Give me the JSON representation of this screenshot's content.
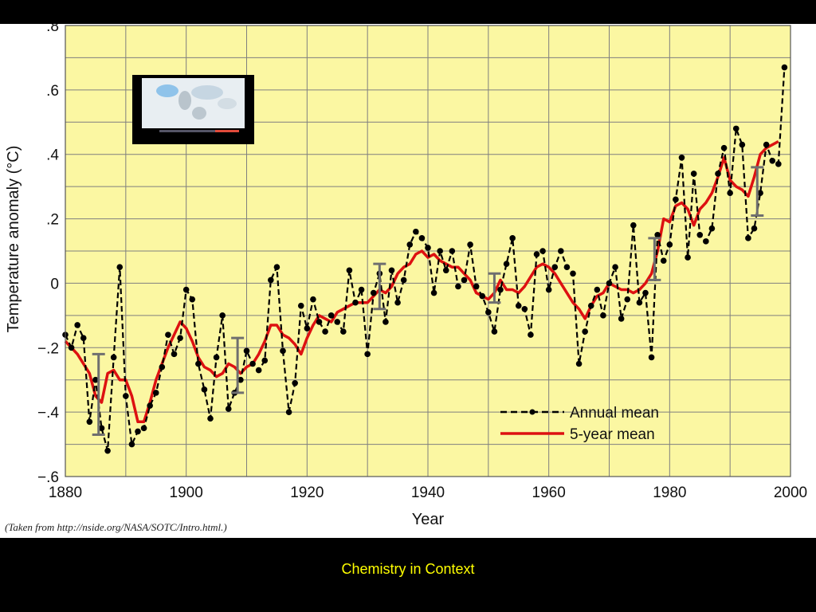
{
  "slide": {
    "footer_text": "Chemistry in Context",
    "source_note": "(Taken from http://nside.org/NASA/SOTC/Intro.html.)"
  },
  "chart_data": {
    "type": "line",
    "xlabel": "Year",
    "ylabel": "Temperature anomaly (°C)",
    "xlim": [
      1880,
      2000
    ],
    "ylim": [
      -0.6,
      0.8
    ],
    "x_ticks": [
      1880,
      1900,
      1920,
      1940,
      1960,
      1980,
      2000
    ],
    "x_tick_labels": [
      "1880",
      "1900",
      "1920",
      "1940",
      "1960",
      "1980",
      "2000"
    ],
    "y_ticks": [
      -0.6,
      -0.4,
      -0.2,
      0,
      0.2,
      0.4,
      0.6,
      0.8
    ],
    "y_tick_labels": [
      "−.6",
      "−.4",
      "−.2",
      "0",
      ".2",
      ".4",
      ".6",
      ".8"
    ],
    "grid": true,
    "background_color": "#fbf7a2",
    "legend_position": "bottom-right",
    "series": [
      {
        "name": "Annual mean",
        "style": "dashed-with-dots",
        "color": "#000000",
        "x": [
          1880,
          1881,
          1882,
          1883,
          1884,
          1885,
          1886,
          1887,
          1888,
          1889,
          1890,
          1891,
          1892,
          1893,
          1894,
          1895,
          1896,
          1897,
          1898,
          1899,
          1900,
          1901,
          1902,
          1903,
          1904,
          1905,
          1906,
          1907,
          1908,
          1909,
          1910,
          1911,
          1912,
          1913,
          1914,
          1915,
          1916,
          1917,
          1918,
          1919,
          1920,
          1921,
          1922,
          1923,
          1924,
          1925,
          1926,
          1927,
          1928,
          1929,
          1930,
          1931,
          1932,
          1933,
          1934,
          1935,
          1936,
          1937,
          1938,
          1939,
          1940,
          1941,
          1942,
          1943,
          1944,
          1945,
          1946,
          1947,
          1948,
          1949,
          1950,
          1951,
          1952,
          1953,
          1954,
          1955,
          1956,
          1957,
          1958,
          1959,
          1960,
          1961,
          1962,
          1963,
          1964,
          1965,
          1966,
          1967,
          1968,
          1969,
          1970,
          1971,
          1972,
          1973,
          1974,
          1975,
          1976,
          1977,
          1978,
          1979,
          1980,
          1981,
          1982,
          1983,
          1984,
          1985,
          1986,
          1987,
          1988,
          1989,
          1990,
          1991,
          1992,
          1993,
          1994,
          1995,
          1996,
          1997,
          1998,
          1999
        ],
        "y": [
          -0.16,
          -0.2,
          -0.13,
          -0.17,
          -0.43,
          -0.3,
          -0.45,
          -0.52,
          -0.23,
          0.05,
          -0.35,
          -0.5,
          -0.46,
          -0.45,
          -0.38,
          -0.34,
          -0.26,
          -0.16,
          -0.22,
          -0.17,
          -0.02,
          -0.05,
          -0.25,
          -0.33,
          -0.42,
          -0.23,
          -0.1,
          -0.39,
          -0.34,
          -0.3,
          -0.21,
          -0.25,
          -0.27,
          -0.24,
          0.01,
          0.05,
          -0.21,
          -0.4,
          -0.31,
          -0.07,
          -0.14,
          -0.05,
          -0.12,
          -0.15,
          -0.1,
          -0.12,
          -0.15,
          0.04,
          -0.06,
          -0.02,
          -0.22,
          -0.03,
          0.03,
          -0.12,
          0.04,
          -0.06,
          0.01,
          0.12,
          0.16,
          0.14,
          0.11,
          -0.03,
          0.1,
          0.04,
          0.1,
          -0.01,
          0.01,
          0.12,
          -0.01,
          -0.04,
          -0.09,
          -0.15,
          -0.02,
          0.06,
          0.14,
          -0.07,
          -0.08,
          -0.16,
          0.09,
          0.1,
          -0.02,
          0.05,
          0.1,
          0.05,
          0.03,
          -0.25,
          -0.15,
          -0.07,
          -0.02,
          -0.1,
          0.0,
          0.05,
          -0.11,
          -0.05,
          0.18,
          -0.06,
          -0.03,
          -0.23,
          0.15,
          0.07,
          0.12,
          0.26,
          0.39,
          0.08,
          0.34,
          0.15,
          0.13,
          0.17,
          0.34,
          0.42,
          0.28,
          0.48,
          0.43,
          0.14,
          0.17,
          0.28,
          0.43,
          0.38,
          0.37,
          0.67
        ]
      },
      {
        "name": "5-year mean",
        "style": "solid",
        "color": "#dd1111",
        "x": [
          1880,
          1882,
          1884,
          1885,
          1886,
          1887,
          1888,
          1889,
          1890,
          1891,
          1892,
          1893,
          1894,
          1895,
          1896,
          1897,
          1898,
          1899,
          1900,
          1901,
          1902,
          1903,
          1904,
          1905,
          1906,
          1907,
          1908,
          1909,
          1910,
          1911,
          1912,
          1913,
          1914,
          1915,
          1916,
          1917,
          1918,
          1919,
          1920,
          1921,
          1922,
          1923,
          1924,
          1925,
          1926,
          1927,
          1928,
          1929,
          1930,
          1931,
          1932,
          1933,
          1934,
          1935,
          1936,
          1937,
          1938,
          1939,
          1940,
          1941,
          1942,
          1943,
          1944,
          1945,
          1946,
          1947,
          1948,
          1949,
          1950,
          1951,
          1952,
          1953,
          1954,
          1955,
          1956,
          1957,
          1958,
          1959,
          1960,
          1961,
          1962,
          1963,
          1964,
          1965,
          1966,
          1967,
          1968,
          1969,
          1970,
          1971,
          1972,
          1973,
          1974,
          1975,
          1976,
          1977,
          1978,
          1979,
          1980,
          1981,
          1982,
          1983,
          1984,
          1985,
          1986,
          1987,
          1988,
          1989,
          1990,
          1991,
          1992,
          1993,
          1994,
          1995,
          1996,
          1997,
          1998
        ],
        "y": [
          -0.18,
          -0.22,
          -0.28,
          -0.35,
          -0.37,
          -0.28,
          -0.27,
          -0.3,
          -0.3,
          -0.35,
          -0.43,
          -0.43,
          -0.37,
          -0.3,
          -0.25,
          -0.2,
          -0.16,
          -0.12,
          -0.14,
          -0.18,
          -0.23,
          -0.26,
          -0.27,
          -0.29,
          -0.28,
          -0.25,
          -0.26,
          -0.28,
          -0.26,
          -0.25,
          -0.22,
          -0.18,
          -0.13,
          -0.13,
          -0.16,
          -0.17,
          -0.19,
          -0.22,
          -0.17,
          -0.13,
          -0.1,
          -0.11,
          -0.12,
          -0.09,
          -0.08,
          -0.07,
          -0.06,
          -0.06,
          -0.06,
          -0.04,
          -0.02,
          -0.03,
          -0.01,
          0.03,
          0.05,
          0.06,
          0.09,
          0.1,
          0.08,
          0.09,
          0.07,
          0.06,
          0.05,
          0.05,
          0.03,
          0.01,
          -0.03,
          -0.04,
          -0.05,
          -0.03,
          0.01,
          -0.02,
          -0.02,
          -0.03,
          -0.01,
          0.02,
          0.05,
          0.06,
          0.05,
          0.03,
          0.0,
          -0.03,
          -0.06,
          -0.08,
          -0.11,
          -0.07,
          -0.04,
          -0.03,
          0.0,
          -0.01,
          -0.02,
          -0.02,
          -0.03,
          -0.02,
          0.0,
          0.03,
          0.1,
          0.2,
          0.19,
          0.24,
          0.25,
          0.23,
          0.18,
          0.23,
          0.25,
          0.28,
          0.33,
          0.39,
          0.32,
          0.3,
          0.29,
          0.27,
          0.33,
          0.4,
          0.42,
          0.43,
          0.44
        ]
      }
    ],
    "error_bars": [
      {
        "x": 1885.5,
        "low": -0.47,
        "high": -0.22
      },
      {
        "x": 1908.5,
        "low": -0.34,
        "high": -0.17
      },
      {
        "x": 1932.0,
        "low": -0.08,
        "high": 0.06
      },
      {
        "x": 1951.0,
        "low": -0.06,
        "high": 0.03
      },
      {
        "x": 1977.5,
        "low": 0.01,
        "high": 0.14
      },
      {
        "x": 1994.5,
        "low": 0.21,
        "high": 0.36
      }
    ]
  }
}
